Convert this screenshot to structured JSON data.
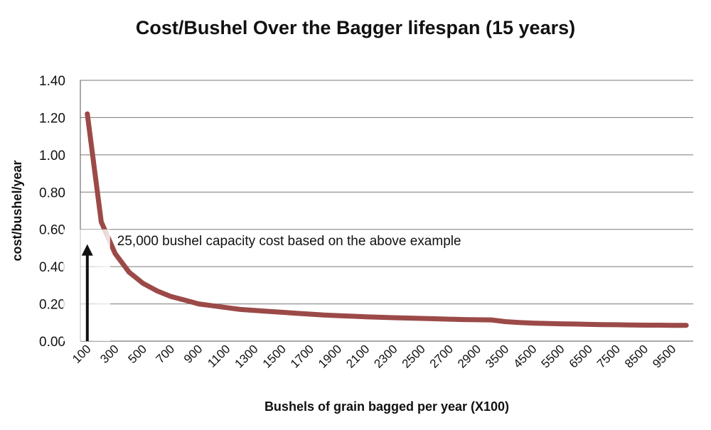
{
  "chart_data": {
    "type": "line",
    "title": "Cost/Bushel Over the Bagger lifespan (15 years)",
    "xlabel": "Bushels of grain bagged per year (X100)",
    "ylabel": "cost/bushel/year",
    "ylim": [
      0,
      1.4
    ],
    "y_ticks": [
      "0.00",
      "0.20",
      "0.40",
      "0.60",
      "0.80",
      "1.00",
      "1.20",
      "1.40"
    ],
    "x_tick_labels": [
      "100",
      "300",
      "500",
      "700",
      "900",
      "1100",
      "1300",
      "1500",
      "1700",
      "1900",
      "2100",
      "2300",
      "2500",
      "2700",
      "2900",
      "3500",
      "4500",
      "5500",
      "6500",
      "7500",
      "8500",
      "9500"
    ],
    "grid": true,
    "line_color": "#9b4a48",
    "series": [
      {
        "x": [
          "100",
          "200",
          "300",
          "400",
          "500",
          "600",
          "700",
          "800",
          "900",
          "1000",
          "1100",
          "1200",
          "1300",
          "1400",
          "1500",
          "1600",
          "1700",
          "1800",
          "1900",
          "2000",
          "2100",
          "2200",
          "2300",
          "2400",
          "2500",
          "2600",
          "2700",
          "2800",
          "2900",
          "3000",
          "3500",
          "4000",
          "4500",
          "5000",
          "5500",
          "6000",
          "6500",
          "7000",
          "7500",
          "8000",
          "8500",
          "9000",
          "9500",
          "10000"
        ],
        "values": [
          1.22,
          0.64,
          0.47,
          0.37,
          0.31,
          0.27,
          0.24,
          0.22,
          0.2,
          0.19,
          0.18,
          0.17,
          0.165,
          0.16,
          0.155,
          0.15,
          0.145,
          0.14,
          0.137,
          0.134,
          0.131,
          0.128,
          0.126,
          0.124,
          0.122,
          0.12,
          0.118,
          0.116,
          0.115,
          0.114,
          0.105,
          0.1,
          0.097,
          0.095,
          0.093,
          0.092,
          0.09,
          0.089,
          0.088,
          0.087,
          0.086,
          0.086,
          0.085,
          0.085
        ]
      }
    ],
    "annotation": {
      "text": "25,000 bushel capacity cost based on the above example",
      "x": "250",
      "y": 0.52
    }
  }
}
